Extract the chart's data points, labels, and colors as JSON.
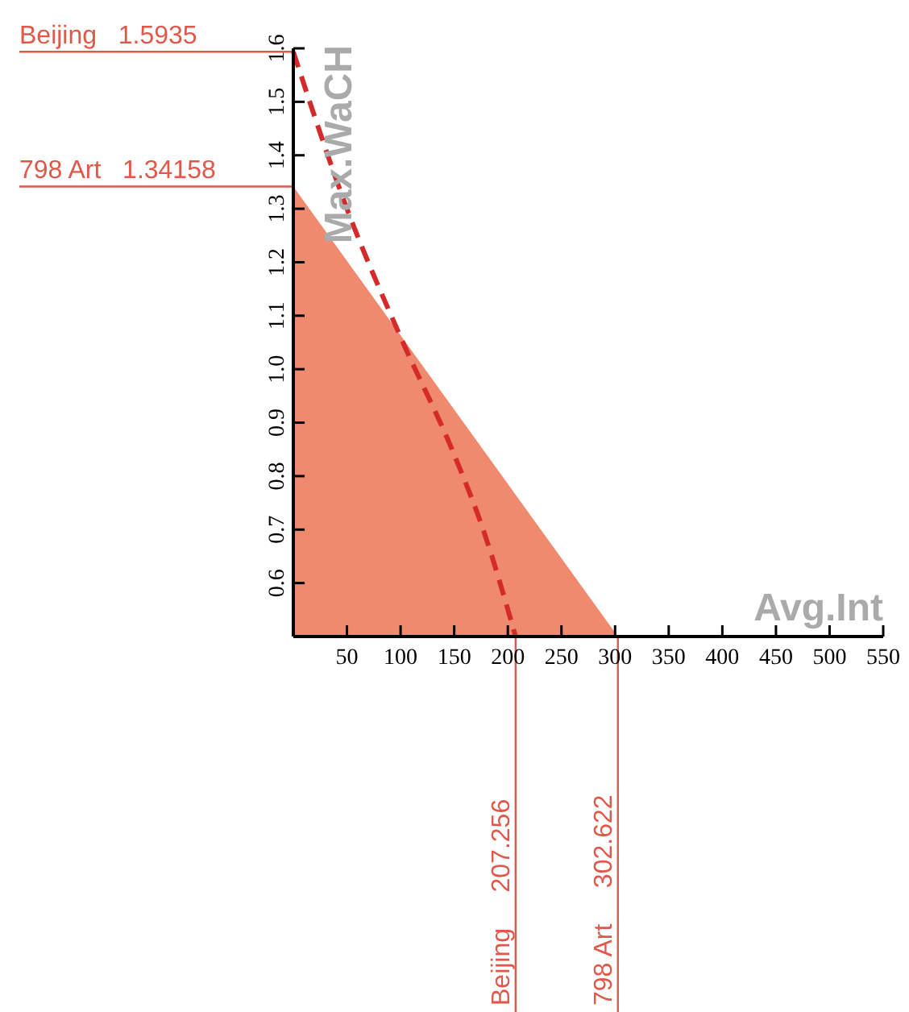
{
  "chart_data": {
    "type": "area",
    "xlabel": "Avg.Int",
    "ylabel": "Max.WaCH",
    "xlim": [
      0,
      550
    ],
    "xticks": [
      50,
      100,
      150,
      200,
      250,
      300,
      350,
      400,
      450,
      500,
      550
    ],
    "ylim": [
      0.5,
      1.6
    ],
    "yticks": [
      0.6,
      0.7,
      0.8,
      0.9,
      {
        "value": 1,
        "label": "1.0"
      },
      1.1,
      1.2,
      1.3,
      1.4,
      1.5,
      1.6
    ],
    "series": [
      {
        "color": "#f08a6e",
        "x": [
          0,
          302.622
        ],
        "values": [
          1.34158,
          0.5
        ]
      },
      {
        "type": "line",
        "color": "#d42a2a",
        "line_style": "dashed",
        "x": [
          0,
          50,
          100,
          150,
          177,
          207.256
        ],
        "values": [
          1.5935,
          1.3,
          1.06,
          0.84,
          0.7,
          0.5
        ]
      }
    ],
    "annotations": [
      {
        "text": "Beijing   1.5935",
        "x": 0,
        "y": 1.5935
      },
      {
        "text": "798 Art   1.34158",
        "x": 0,
        "y": 1.34158
      },
      {
        "text": "Beijing     207.256",
        "x": 207.256,
        "y": 0.5
      },
      {
        "text": "798 Art     302.622",
        "x": 302.622,
        "y": 0.5
      }
    ]
  }
}
